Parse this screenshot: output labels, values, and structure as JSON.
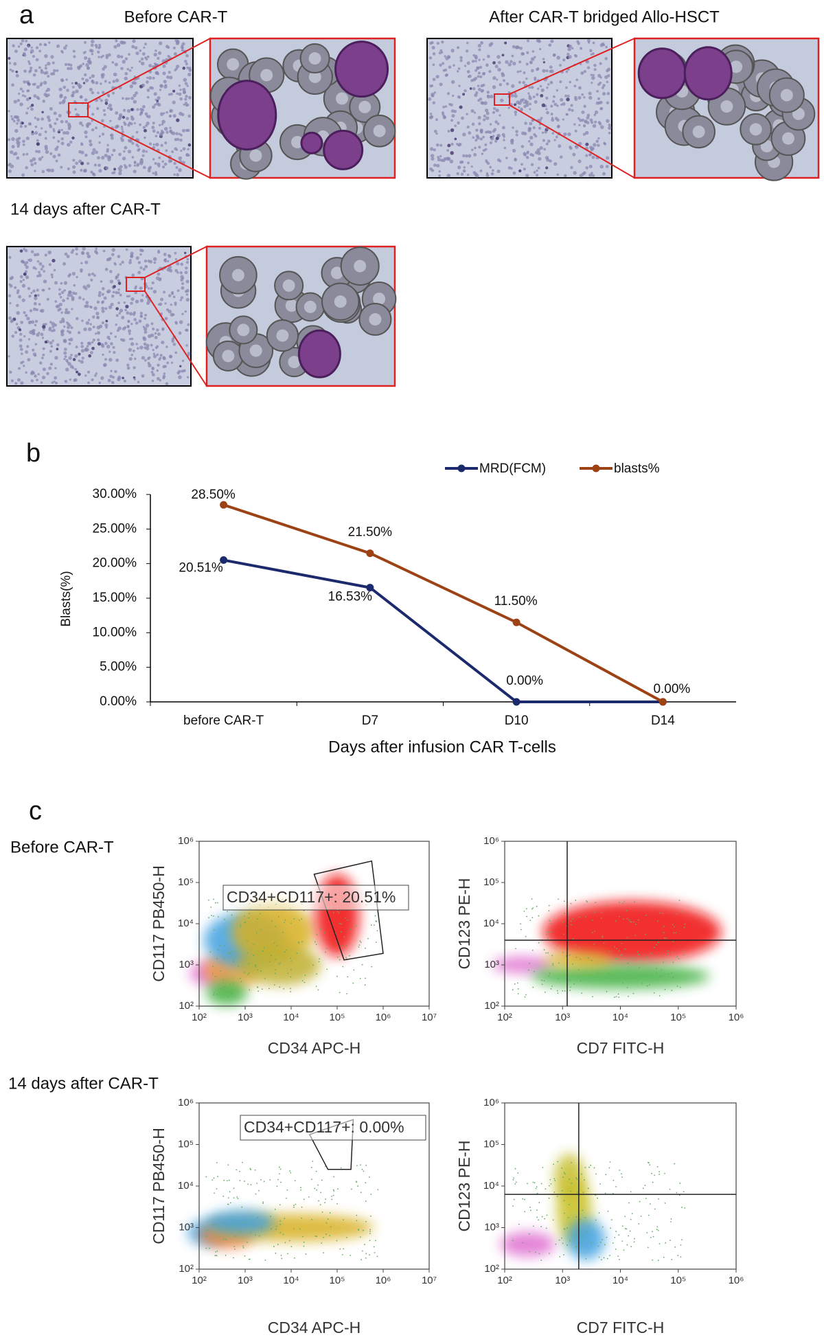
{
  "panel_labels": [
    "a",
    "b",
    "c"
  ],
  "micrographs": [
    {
      "title": "Before CAR-T"
    },
    {
      "title": "After CAR-T bridged Allo-HSCT"
    },
    {
      "title": "14 days after CAR-T"
    }
  ],
  "chart_data": {
    "type": "line",
    "xlabel": "Days after infusion CAR T-cells",
    "ylabel": "Blasts(%)",
    "categories": [
      "before CAR-T",
      "D7",
      "D10",
      "D14"
    ],
    "series": [
      {
        "name": "MRD(FCM)",
        "color": "#1a2a6c",
        "values": [
          20.51,
          16.53,
          0,
          0
        ],
        "value_labels": [
          "20.51%",
          "16.53%",
          "0.00%",
          null
        ]
      },
      {
        "name": "blasts%",
        "color": "#9c4214",
        "values": [
          28.5,
          21.5,
          11.5,
          0
        ],
        "value_labels": [
          "28.50%",
          "21.50%",
          "11.50%",
          "0.00%"
        ]
      }
    ],
    "ylim": [
      0,
      30
    ],
    "yticks": [
      {
        "value": 0,
        "label": "0.00%"
      },
      {
        "value": 5,
        "label": "5.00%"
      },
      {
        "value": 10,
        "label": "10.00%"
      },
      {
        "value": 15,
        "label": "15.00%"
      },
      {
        "value": 20,
        "label": "20.00%"
      },
      {
        "value": 25,
        "label": "25.00%"
      },
      {
        "value": 30,
        "label": "30.00%"
      }
    ],
    "legend": "top"
  },
  "flow_cytometry": {
    "rows": [
      {
        "label": "Before CAR-T",
        "plots": [
          {
            "xlabel": "CD34 APC-H",
            "ylabel": "CD117 PB450-H",
            "gate": "CD34+CD117+: 20.51%",
            "xticks": [
              "10²",
              "10³",
              "10⁴",
              "10⁵",
              "10⁶",
              "10⁷"
            ],
            "yticks": [
              "10²",
              "10³",
              "10⁴",
              "10⁵",
              "10⁶"
            ]
          },
          {
            "xlabel": "CD7 FITC-H",
            "ylabel": "CD123 PE-H",
            "xticks": [
              "10²",
              "10³",
              "10⁴",
              "10⁵",
              "10⁶"
            ],
            "yticks": [
              "10²",
              "10³",
              "10⁴",
              "10⁵",
              "10⁶"
            ]
          }
        ]
      },
      {
        "label": "14 days after CAR-T",
        "plots": [
          {
            "xlabel": "CD34 APC-H",
            "ylabel": "CD117 PB450-H",
            "gate": "CD34+CD117+: 0.00%",
            "xticks": [
              "10²",
              "10³",
              "10⁴",
              "10⁵",
              "10⁶",
              "10⁷"
            ],
            "yticks": [
              "10²",
              "10³",
              "10⁴",
              "10⁵",
              "10⁶"
            ]
          },
          {
            "xlabel": "CD7 FITC-H",
            "ylabel": "CD123 PE-H",
            "xticks": [
              "10²",
              "10³",
              "10⁴",
              "10⁵",
              "10⁶"
            ],
            "yticks": [
              "10²",
              "10³",
              "10⁴",
              "10⁵",
              "10⁶"
            ]
          }
        ]
      }
    ]
  }
}
